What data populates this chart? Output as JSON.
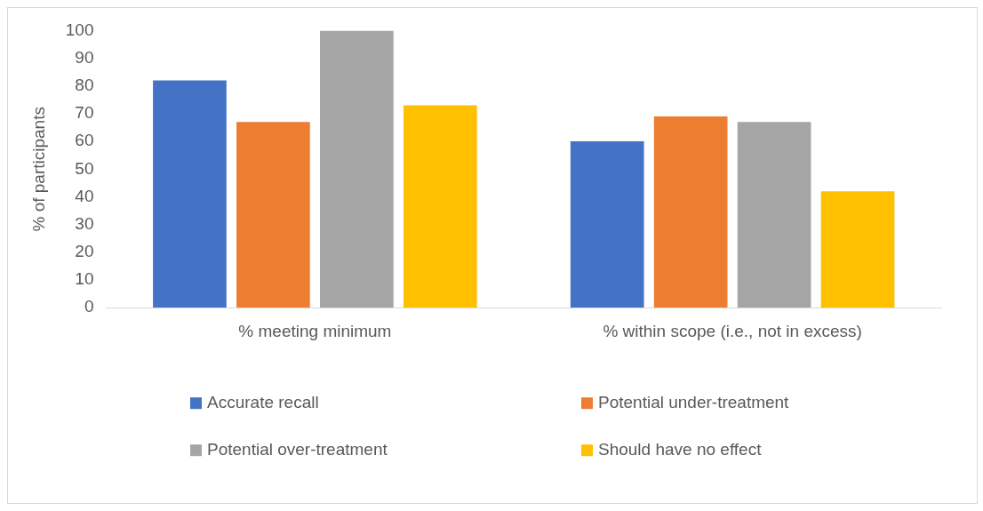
{
  "chart_data": {
    "type": "bar",
    "ylabel": "% of participants",
    "categories": [
      "% meeting minimum",
      "% within scope (i.e., not in excess)"
    ],
    "series": [
      {
        "name": "Accurate recall",
        "color": "#4472c4",
        "values": [
          82,
          60
        ]
      },
      {
        "name": "Potential under-treatment",
        "color": "#ed7d31",
        "values": [
          67,
          69
        ]
      },
      {
        "name": "Potential over-treatment",
        "color": "#a5a5a5",
        "values": [
          100,
          67
        ]
      },
      {
        "name": "Should have no effect",
        "color": "#ffc000",
        "values": [
          73,
          42
        ]
      }
    ],
    "ylim": [
      0,
      100
    ],
    "yticks": [
      0,
      10,
      20,
      30,
      40,
      50,
      60,
      70,
      80,
      90,
      100
    ],
    "grid": false,
    "legend": "bottom"
  }
}
